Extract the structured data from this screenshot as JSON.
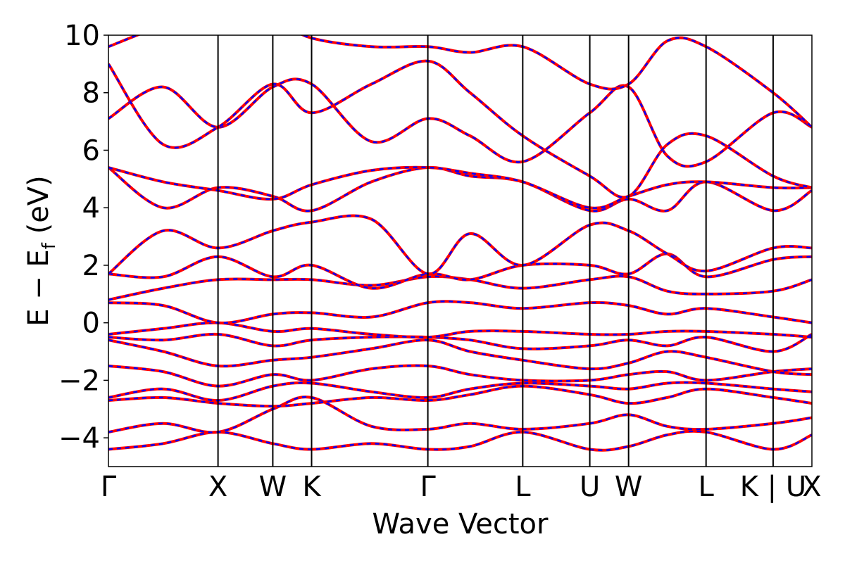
{
  "chart_data": {
    "type": "line",
    "title": "",
    "xlabel": "Wave Vector",
    "ylabel": "E − E",
    "ylabel_sub": "f",
    "ylabel_unit": " (eV)",
    "ylim": [
      -5,
      10
    ],
    "yticks": [
      -4,
      -2,
      0,
      2,
      4,
      6,
      8,
      10
    ],
    "ytick_labels": [
      "−4",
      "−2",
      "0",
      "2",
      "4",
      "6",
      "8",
      "10"
    ],
    "grid": false,
    "legend": "none",
    "kpoints": [
      {
        "label": "Γ",
        "x": 0.0
      },
      {
        "label": "X",
        "x": 1.0
      },
      {
        "label": "W",
        "x": 1.5
      },
      {
        "label": "K",
        "x": 1.854
      },
      {
        "label": "Γ",
        "x": 2.915
      },
      {
        "label": "L",
        "x": 3.781
      },
      {
        "label": "U",
        "x": 4.393
      },
      {
        "label": "W",
        "x": 4.747
      },
      {
        "label": "L",
        "x": 5.454
      },
      {
        "label": "K | U",
        "x": 6.066
      },
      {
        "label": "X",
        "x": 6.42
      }
    ],
    "series": [
      {
        "color": "#ff0000",
        "style": "solid",
        "bands": [
          {
            "x": [
              0,
              0.5,
              1,
              1.5,
              1.854,
              2.4,
              2.915,
              3.3,
              3.781,
              4.393,
              4.747,
              5.1,
              5.454,
              6.066,
              6.42
            ],
            "y": [
              -4.4,
              -4.2,
              -3.8,
              -4.2,
              -4.4,
              -4.2,
              -4.4,
              -4.3,
              -3.8,
              -4.4,
              -4.3,
              -3.9,
              -3.8,
              -4.4,
              -3.9
            ]
          },
          {
            "x": [
              0,
              0.5,
              1,
              1.5,
              1.854,
              2.4,
              2.915,
              3.3,
              3.781,
              4.393,
              4.747,
              5.1,
              5.454,
              6.066,
              6.42
            ],
            "y": [
              -3.8,
              -3.5,
              -3.8,
              -3.0,
              -2.6,
              -3.6,
              -3.7,
              -3.5,
              -3.7,
              -3.5,
              -3.2,
              -3.6,
              -3.7,
              -3.5,
              -3.3
            ]
          },
          {
            "x": [
              0,
              0.5,
              1,
              1.5,
              1.854,
              2.4,
              2.915,
              3.3,
              3.781,
              4.393,
              4.747,
              5.1,
              5.454,
              6.066,
              6.42
            ],
            "y": [
              -2.7,
              -2.6,
              -2.8,
              -2.9,
              -2.8,
              -2.6,
              -2.7,
              -2.5,
              -2.2,
              -2.5,
              -2.8,
              -2.6,
              -2.3,
              -2.6,
              -2.8
            ]
          },
          {
            "x": [
              0,
              0.5,
              1,
              1.5,
              1.854,
              2.4,
              2.915,
              3.3,
              3.781,
              4.393,
              4.747,
              5.1,
              5.454,
              6.066,
              6.42
            ],
            "y": [
              -2.6,
              -2.3,
              -2.7,
              -2.2,
              -2.1,
              -2.4,
              -2.6,
              -2.3,
              -2.1,
              -2.2,
              -2.3,
              -2.1,
              -2.1,
              -2.3,
              -2.4
            ]
          },
          {
            "x": [
              0,
              0.5,
              1,
              1.5,
              1.854,
              2.4,
              2.915,
              3.3,
              3.781,
              4.393,
              4.747,
              5.1,
              5.454,
              6.066,
              6.42
            ],
            "y": [
              -1.5,
              -1.7,
              -2.2,
              -1.8,
              -2.0,
              -1.6,
              -1.5,
              -1.8,
              -2.0,
              -2.0,
              -1.8,
              -1.7,
              -2.0,
              -1.7,
              -1.6
            ]
          },
          {
            "x": [
              0,
              0.5,
              1,
              1.5,
              1.854,
              2.4,
              2.915,
              3.3,
              3.781,
              4.393,
              4.747,
              5.1,
              5.454,
              6.066,
              6.42
            ],
            "y": [
              -0.6,
              -1.0,
              -1.5,
              -1.3,
              -1.2,
              -0.9,
              -0.6,
              -1.0,
              -1.3,
              -1.6,
              -1.4,
              -1.0,
              -1.2,
              -1.7,
              -1.8
            ]
          },
          {
            "x": [
              0,
              0.5,
              1,
              1.5,
              1.854,
              2.4,
              2.915,
              3.3,
              3.781,
              4.393,
              4.747,
              5.1,
              5.454,
              6.066,
              6.42
            ],
            "y": [
              -0.5,
              -0.6,
              -0.4,
              -0.8,
              -0.6,
              -0.5,
              -0.5,
              -0.6,
              -0.9,
              -0.8,
              -0.6,
              -0.8,
              -0.5,
              -1.0,
              -0.4
            ]
          },
          {
            "x": [
              0,
              0.5,
              1,
              1.5,
              1.854,
              2.4,
              2.915,
              3.3,
              3.781,
              4.393,
              4.747,
              5.1,
              5.454,
              6.066,
              6.42
            ],
            "y": [
              -0.4,
              -0.2,
              0.0,
              -0.3,
              -0.2,
              -0.4,
              -0.5,
              -0.3,
              -0.3,
              -0.4,
              -0.4,
              -0.3,
              -0.3,
              -0.4,
              -0.5
            ]
          },
          {
            "x": [
              0,
              0.5,
              1,
              1.5,
              1.854,
              2.4,
              2.915,
              3.3,
              3.781,
              4.393,
              4.747,
              5.1,
              5.454,
              6.066,
              6.42
            ],
            "y": [
              0.7,
              0.6,
              0.0,
              0.3,
              0.35,
              0.2,
              0.7,
              0.7,
              0.5,
              0.7,
              0.6,
              0.3,
              0.5,
              0.2,
              0.0
            ]
          },
          {
            "x": [
              0,
              0.5,
              1,
              1.5,
              1.854,
              2.4,
              2.915,
              3.3,
              3.781,
              4.393,
              4.747,
              5.1,
              5.454,
              6.066,
              6.42
            ],
            "y": [
              0.8,
              1.2,
              1.5,
              1.5,
              1.5,
              1.3,
              1.6,
              1.5,
              1.2,
              1.5,
              1.6,
              1.1,
              1.0,
              1.1,
              1.5
            ]
          },
          {
            "x": [
              0,
              0.5,
              1,
              1.5,
              1.854,
              2.4,
              2.915,
              3.3,
              3.781,
              4.393,
              4.747,
              5.1,
              5.454,
              6.066,
              6.42
            ],
            "y": [
              1.7,
              1.6,
              2.3,
              1.6,
              2.0,
              1.2,
              1.7,
              1.5,
              2.0,
              2.0,
              1.7,
              2.4,
              1.6,
              2.2,
              2.3
            ]
          },
          {
            "x": [
              0,
              0.5,
              1,
              1.5,
              1.854,
              2.4,
              2.915,
              3.3,
              3.781,
              4.393,
              4.747,
              5.1,
              5.454,
              6.066,
              6.42
            ],
            "y": [
              1.7,
              3.2,
              2.6,
              3.2,
              3.5,
              3.6,
              1.7,
              3.1,
              2.0,
              3.4,
              3.2,
              2.4,
              1.8,
              2.6,
              2.6
            ]
          },
          {
            "x": [
              0,
              0.5,
              1,
              1.5,
              1.854,
              2.4,
              2.915,
              3.3,
              3.781,
              4.393,
              4.747,
              5.1,
              5.454,
              6.066,
              6.42
            ],
            "y": [
              5.4,
              4.0,
              4.7,
              4.4,
              3.9,
              4.9,
              5.4,
              5.1,
              4.9,
              3.9,
              4.3,
              3.9,
              4.9,
              3.9,
              4.6
            ]
          },
          {
            "x": [
              0,
              0.5,
              1,
              1.5,
              1.854,
              2.4,
              2.915,
              3.3,
              3.781,
              4.393,
              4.747,
              5.1,
              5.454,
              6.066,
              6.42
            ],
            "y": [
              5.4,
              4.9,
              4.6,
              4.3,
              4.8,
              5.3,
              5.4,
              5.2,
              4.9,
              4.0,
              4.4,
              4.8,
              4.9,
              4.7,
              4.7
            ]
          },
          {
            "x": [
              0,
              0.5,
              1,
              1.5,
              1.854,
              2.4,
              2.915,
              3.3,
              3.781,
              4.393,
              4.747,
              5.1,
              5.454,
              6.066,
              6.42
            ],
            "y": [
              7.1,
              8.2,
              6.8,
              8.2,
              8.3,
              6.3,
              7.1,
              6.5,
              5.6,
              7.3,
              8.2,
              5.8,
              5.6,
              7.3,
              6.8
            ]
          },
          {
            "x": [
              0,
              0.5,
              1,
              1.5,
              1.854,
              2.4,
              2.915,
              3.3,
              3.781,
              4.393,
              4.747,
              5.1,
              5.454,
              6.066,
              6.42
            ],
            "y": [
              9.0,
              6.2,
              6.8,
              8.3,
              7.3,
              8.3,
              9.1,
              8.0,
              6.5,
              5.1,
              4.4,
              6.2,
              6.5,
              5.1,
              4.7
            ]
          },
          {
            "x": [
              0,
              0.5,
              1,
              1.5,
              1.854,
              2.4,
              2.915,
              3.3,
              3.781,
              4.393,
              4.747,
              5.1,
              5.454,
              6.066,
              6.42
            ],
            "y": [
              9.6,
              10.3,
              10.5,
              10.5,
              9.9,
              9.6,
              9.6,
              9.4,
              9.6,
              8.3,
              8.3,
              9.8,
              9.6,
              8.0,
              6.8
            ]
          }
        ]
      },
      {
        "color": "#0000ff",
        "style": "dashed"
      }
    ]
  }
}
